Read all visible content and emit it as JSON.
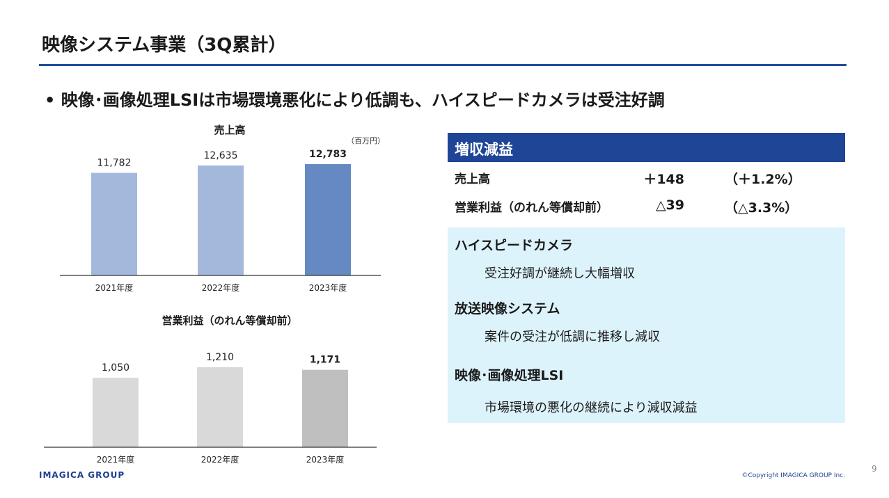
{
  "header": {
    "title": "映像システム事業（3Q累計）",
    "subtitle": "• 映像･画像処理LSIは市場環境悪化により低調も、ハイスピードカメラは受注好調"
  },
  "chart_data": [
    {
      "type": "bar",
      "title": "売上高",
      "unit": "（百万円）",
      "categories": [
        "2021年度",
        "2022年度",
        "2023年度"
      ],
      "values": [
        11782,
        12635,
        12783
      ],
      "value_labels": [
        "11,782",
        "12,635",
        "12,783"
      ],
      "colors": [
        "#a4b8dc",
        "#a4b8dc",
        "#6589c2"
      ],
      "highlight_last_bold": true
    },
    {
      "type": "bar",
      "title": "営業利益（のれん等償却前）",
      "categories": [
        "2021年度",
        "2022年度",
        "2023年度"
      ],
      "values": [
        1050,
        1210,
        1171
      ],
      "value_labels": [
        "1,050",
        "1,210",
        "1,171"
      ],
      "colors": [
        "#d9d9d9",
        "#d9d9d9",
        "#bfbfbf"
      ],
      "highlight_last_bold": true
    }
  ],
  "panel": {
    "heading": "増収減益",
    "rows": [
      {
        "label": "売上高",
        "value": "＋148",
        "pct": "（＋1.2%）"
      },
      {
        "label": "営業利益（のれん等償却前）",
        "value": "△39",
        "pct": "（△3.3%）"
      }
    ],
    "segments": [
      {
        "title": "ハイスピードカメラ",
        "text": "受注好調が継続し大幅増収"
      },
      {
        "title": "放送映像システム",
        "text": "案件の受注が低調に推移し減収"
      },
      {
        "title": "映像･画像処理LSI",
        "text": "市場環境の悪化の継続により減収減益"
      }
    ]
  },
  "footer": {
    "logo": "IMAGICA GROUP",
    "copyright": "©Copyright IMAGICA GROUP Inc.",
    "page": "9"
  },
  "colors": {
    "accent": "#1f4597",
    "rule": "#1f4e9c",
    "info_bg": "#ddf3fb"
  }
}
